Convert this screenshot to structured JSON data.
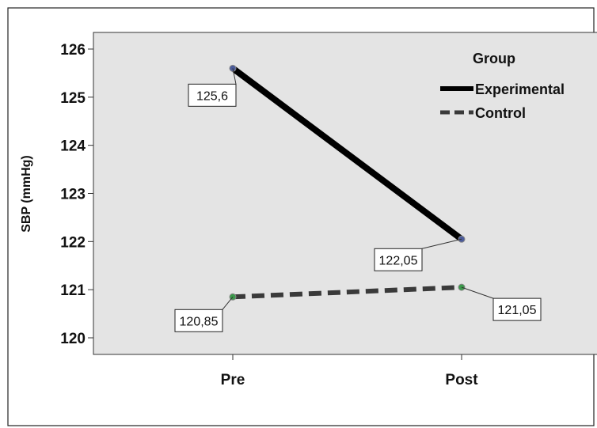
{
  "chart_data": {
    "type": "line",
    "categories": [
      "Pre",
      "Post"
    ],
    "ylabel": "SBP (mmHg)",
    "xlabel": "",
    "ylim": [
      120,
      126
    ],
    "yticks": [
      "120",
      "121",
      "122",
      "123",
      "124",
      "125",
      "126"
    ],
    "grid": false,
    "legend": {
      "title": "Group",
      "position": "top-right"
    },
    "series": [
      {
        "name": "Experimental",
        "values": [
          125.6,
          122.05
        ],
        "labels": [
          "125,6",
          "122,05"
        ],
        "color": "#000000",
        "style": "solid"
      },
      {
        "name": "Control",
        "values": [
          120.85,
          121.05
        ],
        "labels": [
          "120,85",
          "121,05"
        ],
        "color": "#3a3a3a",
        "style": "dashed"
      }
    ],
    "colors": {
      "plot_background": "#e4e4e4",
      "experimental_marker": "#4a5a9a",
      "control_marker": "#3a9a4a"
    }
  }
}
